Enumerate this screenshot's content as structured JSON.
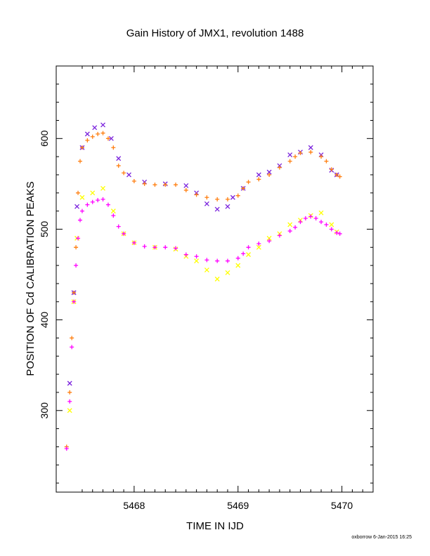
{
  "chart_data": {
    "type": "scatter",
    "title": "Gain History of JMX1, revolution 1488",
    "xlabel": "TIME IN IJD",
    "ylabel": "POSITION OF Cd CALIBRATION PEAKS",
    "xlim": [
      5467.25,
      5470.3
    ],
    "ylim": [
      210,
      680
    ],
    "xticks": [
      5468,
      5469,
      5470
    ],
    "yticks": [
      300,
      400,
      500,
      600
    ],
    "grid": false,
    "footer": "oxborrow  6-Jan-2015 16:25",
    "series": [
      {
        "marker": "x",
        "color": "#7a22dd",
        "points": [
          [
            5467.38,
            330
          ],
          [
            5467.42,
            430
          ],
          [
            5467.45,
            525
          ],
          [
            5467.5,
            590
          ],
          [
            5467.55,
            605
          ],
          [
            5467.62,
            612
          ],
          [
            5467.7,
            615
          ],
          [
            5467.78,
            600
          ],
          [
            5467.85,
            578
          ],
          [
            5467.95,
            560
          ],
          [
            5468.1,
            552
          ],
          [
            5468.3,
            550
          ],
          [
            5468.5,
            548
          ],
          [
            5468.6,
            540
          ],
          [
            5468.7,
            528
          ],
          [
            5468.8,
            522
          ],
          [
            5468.9,
            525
          ],
          [
            5468.95,
            535
          ],
          [
            5469.05,
            545
          ],
          [
            5469.2,
            560
          ],
          [
            5469.3,
            563
          ],
          [
            5469.4,
            570
          ],
          [
            5469.5,
            582
          ],
          [
            5469.6,
            585
          ],
          [
            5469.7,
            590
          ],
          [
            5469.8,
            582
          ],
          [
            5469.9,
            565
          ],
          [
            5469.95,
            560
          ]
        ]
      },
      {
        "marker": "x",
        "color": "#ffff00",
        "points": [
          [
            5467.38,
            300
          ],
          [
            5467.42,
            420
          ],
          [
            5467.45,
            490
          ],
          [
            5467.5,
            535
          ],
          [
            5467.6,
            540
          ],
          [
            5467.7,
            545
          ],
          [
            5467.8,
            520
          ],
          [
            5467.9,
            495
          ],
          [
            5468.0,
            485
          ],
          [
            5468.2,
            480
          ],
          [
            5468.4,
            478
          ],
          [
            5468.5,
            470
          ],
          [
            5468.6,
            465
          ],
          [
            5468.7,
            455
          ],
          [
            5468.8,
            445
          ],
          [
            5468.9,
            452
          ],
          [
            5469.0,
            460
          ],
          [
            5469.1,
            472
          ],
          [
            5469.2,
            480
          ],
          [
            5469.3,
            490
          ],
          [
            5469.4,
            495
          ],
          [
            5469.5,
            505
          ],
          [
            5469.6,
            510
          ],
          [
            5469.7,
            515
          ],
          [
            5469.8,
            518
          ],
          [
            5469.9,
            505
          ],
          [
            5469.95,
            497
          ]
        ]
      },
      {
        "marker": "+",
        "color": "#ff7f10",
        "points": [
          [
            5467.35,
            260
          ],
          [
            5467.38,
            320
          ],
          [
            5467.4,
            380
          ],
          [
            5467.42,
            430
          ],
          [
            5467.44,
            480
          ],
          [
            5467.46,
            540
          ],
          [
            5467.48,
            575
          ],
          [
            5467.5,
            590
          ],
          [
            5467.55,
            598
          ],
          [
            5467.6,
            602
          ],
          [
            5467.65,
            605
          ],
          [
            5467.7,
            606
          ],
          [
            5467.75,
            600
          ],
          [
            5467.8,
            590
          ],
          [
            5467.85,
            570
          ],
          [
            5467.9,
            562
          ],
          [
            5468.0,
            553
          ],
          [
            5468.1,
            550
          ],
          [
            5468.2,
            549
          ],
          [
            5468.3,
            549
          ],
          [
            5468.4,
            549
          ],
          [
            5468.5,
            543
          ],
          [
            5468.6,
            538
          ],
          [
            5468.7,
            535
          ],
          [
            5468.8,
            533
          ],
          [
            5468.9,
            533
          ],
          [
            5469.0,
            537
          ],
          [
            5469.05,
            545
          ],
          [
            5469.1,
            552
          ],
          [
            5469.2,
            555
          ],
          [
            5469.3,
            560
          ],
          [
            5469.4,
            568
          ],
          [
            5469.5,
            575
          ],
          [
            5469.55,
            580
          ],
          [
            5469.6,
            584
          ],
          [
            5469.7,
            585
          ],
          [
            5469.8,
            580
          ],
          [
            5469.85,
            575
          ],
          [
            5469.9,
            566
          ],
          [
            5469.95,
            560
          ],
          [
            5469.98,
            558
          ]
        ]
      },
      {
        "marker": "+",
        "color": "#ff00ff",
        "points": [
          [
            5467.35,
            258
          ],
          [
            5467.38,
            310
          ],
          [
            5467.4,
            370
          ],
          [
            5467.42,
            420
          ],
          [
            5467.44,
            460
          ],
          [
            5467.46,
            490
          ],
          [
            5467.48,
            510
          ],
          [
            5467.5,
            520
          ],
          [
            5467.55,
            527
          ],
          [
            5467.6,
            530
          ],
          [
            5467.65,
            532
          ],
          [
            5467.7,
            533
          ],
          [
            5467.75,
            527
          ],
          [
            5467.8,
            515
          ],
          [
            5467.85,
            503
          ],
          [
            5467.9,
            495
          ],
          [
            5468.0,
            485
          ],
          [
            5468.1,
            481
          ],
          [
            5468.2,
            480
          ],
          [
            5468.3,
            480
          ],
          [
            5468.4,
            479
          ],
          [
            5468.5,
            472
          ],
          [
            5468.6,
            470
          ],
          [
            5468.7,
            466
          ],
          [
            5468.8,
            465
          ],
          [
            5468.9,
            465
          ],
          [
            5469.0,
            468
          ],
          [
            5469.05,
            473
          ],
          [
            5469.1,
            480
          ],
          [
            5469.2,
            484
          ],
          [
            5469.3,
            487
          ],
          [
            5469.4,
            493
          ],
          [
            5469.5,
            498
          ],
          [
            5469.55,
            502
          ],
          [
            5469.6,
            508
          ],
          [
            5469.65,
            512
          ],
          [
            5469.7,
            514
          ],
          [
            5469.75,
            512
          ],
          [
            5469.8,
            508
          ],
          [
            5469.85,
            505
          ],
          [
            5469.9,
            500
          ],
          [
            5469.95,
            496
          ],
          [
            5469.98,
            495
          ]
        ]
      }
    ]
  }
}
